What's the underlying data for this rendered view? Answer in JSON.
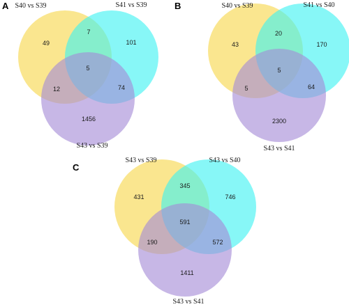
{
  "colors": {
    "set1": "#f7d64a",
    "set2": "#3ef2f2",
    "set3": "#a58bd6",
    "circle_opacity": "0.62",
    "text": "#1a1a1a"
  },
  "panels": [
    {
      "letter": "A",
      "sets": [
        "S40 vs S39",
        "S41 vs S39",
        "S43 vs S39"
      ],
      "counts": {
        "only_1": "49",
        "only_2": "101",
        "only_3": "1456",
        "set1_set2": "7",
        "set1_set3": "12",
        "set2_set3": "74",
        "all_three": "5"
      }
    },
    {
      "letter": "B",
      "sets": [
        "S40 vs S39",
        "S41 vs S40",
        "S43 vs S41"
      ],
      "counts": {
        "only_1": "43",
        "only_2": "170",
        "only_3": "2300",
        "set1_set2": "20",
        "set1_set3": "5",
        "set2_set3": "64",
        "all_three": "5"
      }
    },
    {
      "letter": "C",
      "sets": [
        "S43 vs S39",
        "S43 vs S40",
        "S43 vs S41"
      ],
      "counts": {
        "only_1": "431",
        "only_2": "746",
        "only_3": "1411",
        "set1_set2": "345",
        "set1_set3": "190",
        "set2_set3": "572",
        "all_three": "591"
      }
    }
  ]
}
